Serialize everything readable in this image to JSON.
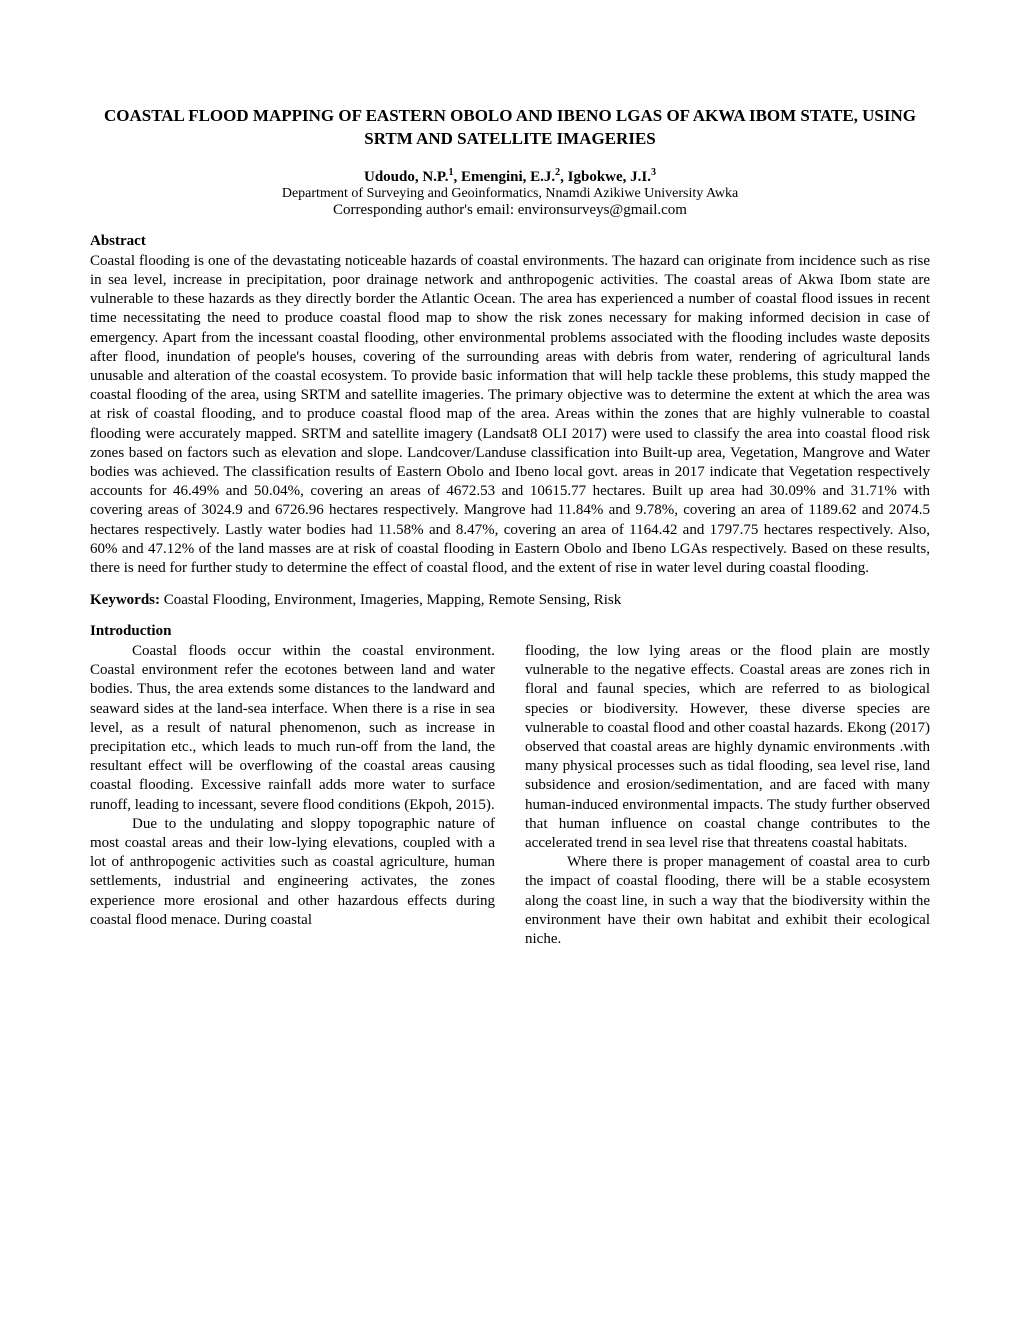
{
  "title": "COASTAL FLOOD MAPPING OF EASTERN OBOLO AND IBENO LGAS OF AKWA IBOM STATE, USING SRTM AND SATELLITE IMAGERIES",
  "authors": {
    "prefix1": "Udoudo, N.P.",
    "sup1": "1",
    "sep1": ", Emengini, E.J.",
    "sup2": "2",
    "sep2": ", Igbokwe, J.I.",
    "sup3": "3"
  },
  "affiliation": "Department of Surveying and Geoinformatics, Nnamdi Azikiwe University Awka",
  "email": "Corresponding author's email: environsurveys@gmail.com",
  "abstractHeading": "Abstract",
  "abstractText": "Coastal flooding is one of the devastating noticeable hazards of coastal environments. The hazard can originate from incidence such as rise in sea level, increase in precipitation, poor drainage network and anthropogenic activities. The coastal areas of Akwa Ibom state are vulnerable to these hazards as they directly border the Atlantic Ocean. The area has experienced a number of coastal flood issues in recent time necessitating the need to produce coastal flood map to show the risk zones necessary for making informed decision in case of emergency. Apart from the incessant coastal flooding, other environmental problems associated with the flooding includes waste deposits after flood, inundation of people's houses, covering of the surrounding areas with debris from water, rendering of agricultural lands unusable and alteration of the coastal ecosystem. To provide basic information that will help tackle these problems, this study mapped the coastal flooding of the area, using SRTM and satellite imageries. The primary objective was to determine the extent at which the area was at risk of coastal flooding, and to produce coastal flood map of the area. Areas within the zones that are highly vulnerable to coastal flooding were accurately mapped. SRTM and satellite imagery (Landsat8 OLI 2017) were used to classify the area into coastal flood risk zones based on factors such as elevation and slope. Landcover/Landuse classification into Built-up area, Vegetation, Mangrove and Water bodies was achieved. The classification results of Eastern Obolo and Ibeno local govt. areas in 2017 indicate that Vegetation respectively accounts for 46.49% and 50.04%, covering an areas of 4672.53 and 10615.77 hectares. Built up area had 30.09% and 31.71% with covering areas of 3024.9 and 6726.96 hectares respectively. Mangrove had 11.84% and 9.78%, covering an area of 1189.62 and 2074.5 hectares respectively. Lastly water bodies had 11.58% and 8.47%, covering an area of 1164.42 and 1797.75 hectares respectively. Also, 60% and 47.12% of the land masses are at risk of coastal flooding in Eastern Obolo and Ibeno LGAs respectively. Based on these results, there is need for further study to determine the effect of coastal flood, and the extent of rise in water level during coastal flooding.",
  "keywordsLabel": "Keywords: ",
  "keywordsText": "Coastal Flooding, Environment, Imageries, Mapping, Remote Sensing, Risk",
  "introHeading": "Introduction",
  "col1p1": "Coastal floods occur within the coastal environment. Coastal environment refer the ecotones between land and water bodies. Thus, the area extends some distances to the landward and seaward sides at the land-sea interface. When there is a rise in sea level, as a result of natural phenomenon, such as increase in precipitation etc., which leads to much run-off from the land, the resultant effect will be overflowing of the coastal areas causing coastal flooding. Excessive rainfall adds more water to surface runoff, leading to incessant, severe flood conditions (Ekpoh, 2015).",
  "col1p2": "Due to the undulating and sloppy topographic nature of most coastal areas and their low-lying elevations, coupled with a lot of anthropogenic activities such as coastal agriculture, human settlements, industrial and engineering activates, the zones experience more erosional and other hazardous effects during coastal flood menace. During coastal",
  "col2p1": "flooding, the low lying areas or the flood plain are mostly vulnerable to the negative effects. Coastal areas are zones rich in floral and faunal species, which are referred to as biological species or biodiversity. However, these diverse species are vulnerable to coastal flood and other coastal hazards. Ekong (2017) observed that coastal areas are highly dynamic environments .with many physical processes such as tidal flooding, sea level rise, land subsidence and erosion/sedimentation, and are faced with many human-induced environmental impacts. The study further observed that human influence on coastal change contributes to the accelerated trend in sea level rise that threatens coastal habitats.",
  "col2p2": "Where there is proper management of coastal area to curb the impact of coastal flooding, there will be a stable ecosystem along the coast line, in such a way that the biodiversity within the environment have their own habitat and exhibit their ecological niche.",
  "style": {
    "backgroundColor": "#ffffff",
    "textColor": "#000000",
    "fontFamily": "Times New Roman",
    "titleFontSize": 17,
    "bodyFontSize": 15,
    "affiliationFontSize": 14,
    "supFontSize": 10,
    "pageWidth": 1020,
    "pageHeight": 1320,
    "columnGap": 30,
    "textIndent": 42,
    "lineHeight": 1.28
  }
}
